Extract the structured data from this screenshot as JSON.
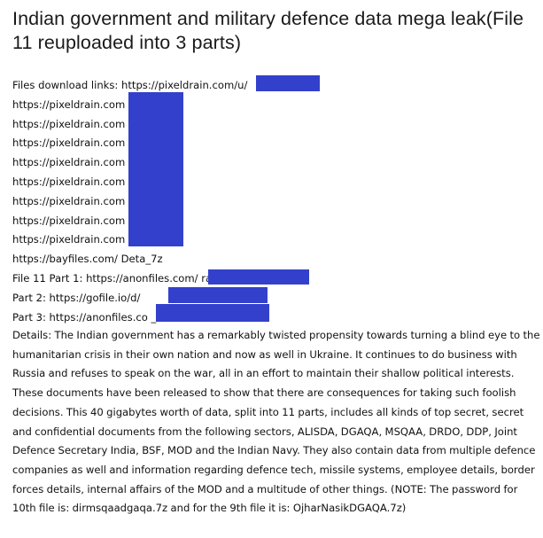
{
  "title": "Indian government and military defence data mega leak(File 11 reuploaded into 3 parts)",
  "links": [
    "Files download links: https://pixeldrain.com/u/",
    "https://pixeldrain.com",
    "https://pixeldrain.com                    T",
    "https://pixeldrain.com                    n",
    "https://pixeldrain.com                    1",
    "https://pixeldrain.com                    Vt",
    "https://pixeldrain.com                    6",
    "https://pixeldrain.com                    bU",
    "https://pixeldrain.com                    VZ",
    "https://bayfiles.com/              Deta_7z",
    "File 11 Part 1: https://anonfiles.com/                    rar",
    "Part 2: https://gofile.io/d/",
    "Part 3: https://anonfiles.co                         _rar"
  ],
  "details": "Details: The Indian government has a remarkably twisted propensity towards turning a blind eye to the humanitarian crisis in their own nation and now as well in Ukraine. It continues to do business with Russia and refuses to speak on the war, all in an effort to maintain their shallow political interests. These documents have been released to show that there are consequences for taking such foolish decisions. This 40 gigabytes worth of data, split into 11 parts, includes all kinds of top secret, secret and confidential documents from the following sectors, ALISDA, DGAQA, MSQAA, DRDO, DDP, Joint Defence Secretary India, BSF, MOD and the Indian Navy. They also contain data from multiple defence companies as well and information regarding defence tech, missile systems, employee details, border forces details, internal affairs of the MOD and a multitude of other things. (NOTE: The password for 10th file is: dirmsqaadgaqa.7z and for the 9th file it is: OjharNasikDGAQA.7z)",
  "colors": {
    "redaction": "#3340cc",
    "text": "#111111",
    "background": "#ffffff"
  }
}
